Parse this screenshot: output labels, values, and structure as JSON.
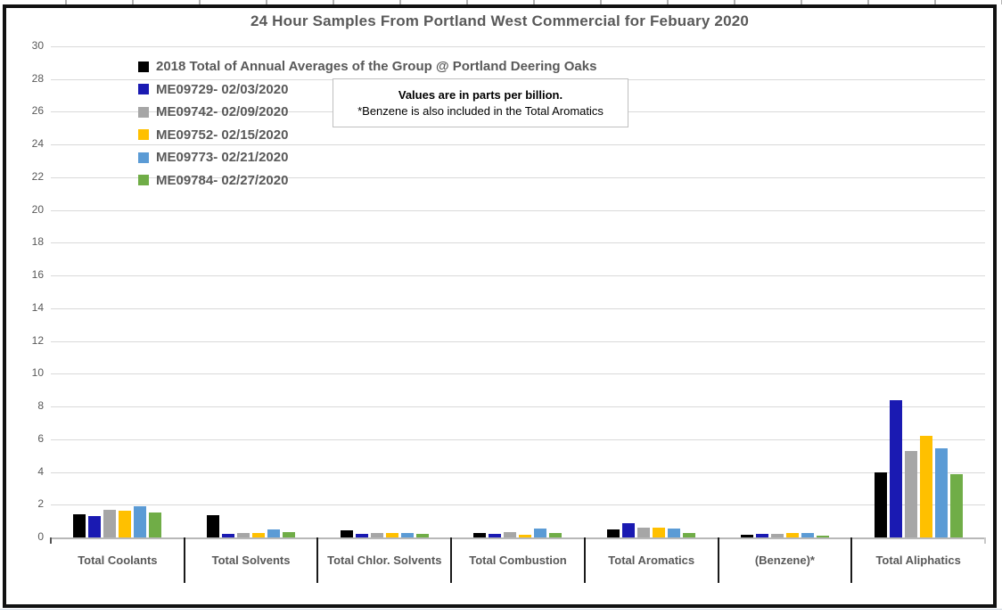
{
  "note_box": {
    "line1": "Values are in parts per billion.",
    "line2": "*Benzene is also included in the Total Aromatics"
  },
  "chart_data": {
    "type": "bar",
    "title": "24 Hour Samples From Portland West Commercial for Febuary 2020",
    "ylabel": "",
    "xlabel": "",
    "units": "parts per billion",
    "ylim": [
      0,
      30
    ],
    "ytick_step": 2,
    "grid": true,
    "legend_position": "top-left-inside",
    "categories": [
      "Total Coolants",
      "Total Solvents",
      "Total Chlor. Solvents",
      "Total Combustion",
      "Total Aromatics",
      "(Benzene)*",
      "Total Aliphatics"
    ],
    "series": [
      {
        "name": "2018 Total of Annual Averages of the Group @ Portland Deering Oaks",
        "color": "#000000",
        "values": [
          1.4,
          1.35,
          0.45,
          0.3,
          0.5,
          0.15,
          4.0
        ]
      },
      {
        "name": "ME09729- 02/03/2020",
        "color": "#1a1ab2",
        "values": [
          1.3,
          0.2,
          0.2,
          0.2,
          0.85,
          0.2,
          8.4
        ]
      },
      {
        "name": "ME09742- 02/09/2020",
        "color": "#a6a6a6",
        "values": [
          1.7,
          0.25,
          0.25,
          0.35,
          0.6,
          0.2,
          5.3
        ]
      },
      {
        "name": "ME09752- 02/15/2020",
        "color": "#ffc000",
        "values": [
          1.65,
          0.25,
          0.3,
          0.15,
          0.6,
          0.25,
          6.2
        ]
      },
      {
        "name": "ME09773- 02/21/2020",
        "color": "#5b9bd5",
        "values": [
          1.9,
          0.5,
          0.3,
          0.55,
          0.55,
          0.25,
          5.45
        ]
      },
      {
        "name": "ME09784- 02/27/2020",
        "color": "#70ad47",
        "values": [
          1.5,
          0.35,
          0.2,
          0.25,
          0.3,
          0.1,
          3.85
        ]
      }
    ]
  }
}
